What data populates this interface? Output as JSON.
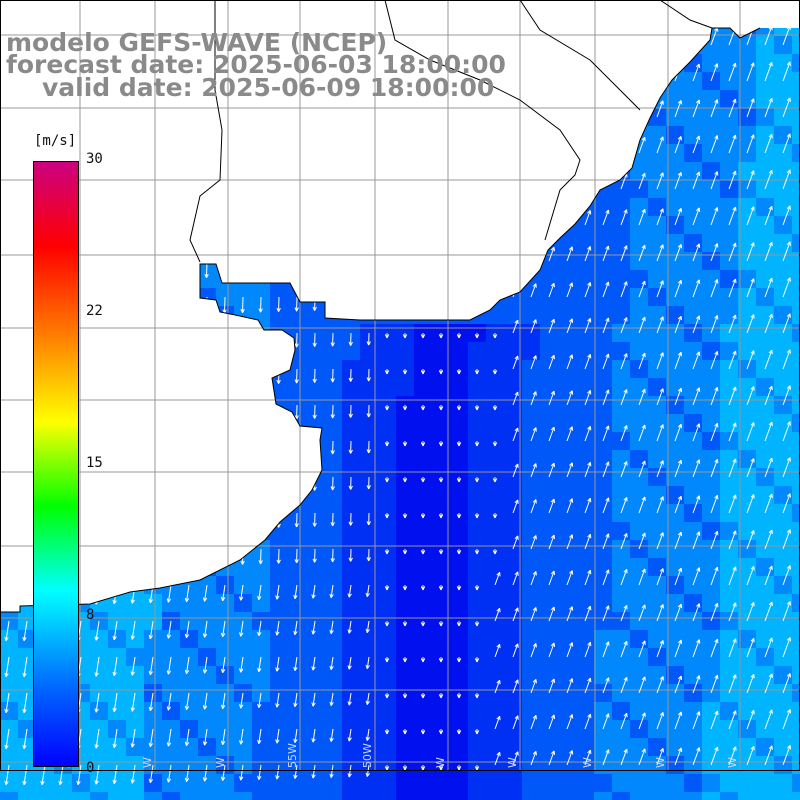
{
  "header": {
    "line1": "modelo GEFS-WAVE (NCEP)",
    "line2": "forecast date: 2025-06-03 18:00:00",
    "line3": "valid date: 2025-06-09 18:00:00"
  },
  "colorbar": {
    "unit": "[m/s]",
    "ticks": [
      "30",
      "22",
      "15",
      "8",
      "0"
    ],
    "tick_values": [
      30,
      22,
      15,
      8,
      0
    ],
    "range": [
      0,
      30
    ],
    "colors": [
      "#0000ff",
      "#0070ff",
      "#00ffff",
      "#00ff00",
      "#ffff00",
      "#ff8000",
      "#ff0000",
      "#cc0080"
    ]
  },
  "map": {
    "variable": "wind speed and direction",
    "field_colors": {
      "core": "#0010ee",
      "inner": "#0030f4",
      "mid": "#0058f8",
      "outer": "#0088fc",
      "edge": "#00b4ff"
    },
    "land_color": "#ffffff",
    "coastline_color": "#000000",
    "grid_color": "#999999",
    "longitude_labels": [
      "W",
      "W",
      "W",
      "55W",
      "50W",
      "W",
      "W",
      "W",
      "W",
      "W"
    ]
  }
}
